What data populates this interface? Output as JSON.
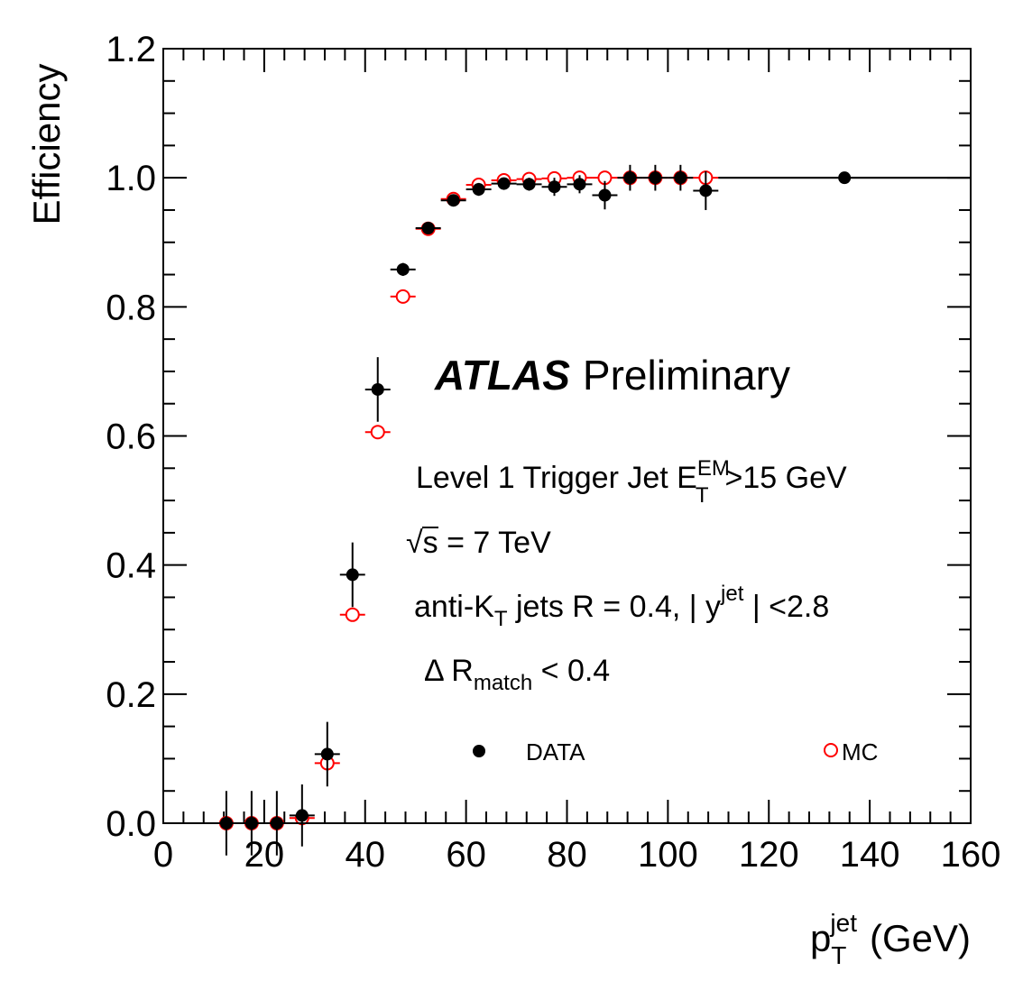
{
  "chart_data": {
    "type": "scatter",
    "xlabel": "p",
    "xlabel_sup": "jet",
    "xlabel_sub": "T",
    "xlabel_unit": "(GeV)",
    "ylabel": "Efficiency",
    "xlim": [
      0,
      160
    ],
    "ylim": [
      0,
      1.2
    ],
    "x_ticks": [
      "0",
      "20",
      "40",
      "60",
      "80",
      "100",
      "120",
      "140",
      "160"
    ],
    "y_ticks": [
      "0.0",
      "0.2",
      "0.4",
      "0.6",
      "0.8",
      "1.0",
      "1.2"
    ],
    "x_tick_values": [
      0,
      20,
      40,
      60,
      80,
      100,
      120,
      140,
      160
    ],
    "y_tick_values": [
      0,
      0.2,
      0.4,
      0.6,
      0.8,
      1.0,
      1.2
    ],
    "series": [
      {
        "name": "DATA",
        "color": "#000000",
        "marker": "filled-circle",
        "points": [
          {
            "x": 12.5,
            "y": 0.0,
            "xerr": 2.5,
            "yerr": 0.05
          },
          {
            "x": 17.5,
            "y": 0.0,
            "xerr": 2.5,
            "yerr": 0.05
          },
          {
            "x": 22.5,
            "y": 0.0,
            "xerr": 2.5,
            "yerr": 0.05
          },
          {
            "x": 27.5,
            "y": 0.012,
            "xerr": 2.5,
            "yerr": 0.048
          },
          {
            "x": 32.5,
            "y": 0.107,
            "xerr": 2.5,
            "yerr": 0.05
          },
          {
            "x": 37.5,
            "y": 0.385,
            "xerr": 2.5,
            "yerr": 0.05
          },
          {
            "x": 42.5,
            "y": 0.672,
            "xerr": 2.5,
            "yerr": 0.05
          },
          {
            "x": 47.5,
            "y": 0.858,
            "xerr": 2.5,
            "yerr": 0.01
          },
          {
            "x": 52.5,
            "y": 0.922,
            "xerr": 2.5,
            "yerr": 0.008
          },
          {
            "x": 57.5,
            "y": 0.965,
            "xerr": 2.5,
            "yerr": 0.008
          },
          {
            "x": 62.5,
            "y": 0.982,
            "xerr": 2.5,
            "yerr": 0.01
          },
          {
            "x": 67.5,
            "y": 0.991,
            "xerr": 2.5,
            "yerr": 0.008
          },
          {
            "x": 72.5,
            "y": 0.99,
            "xerr": 2.5,
            "yerr": 0.01
          },
          {
            "x": 77.5,
            "y": 0.986,
            "xerr": 2.5,
            "yerr": 0.014
          },
          {
            "x": 82.5,
            "y": 0.99,
            "xerr": 2.5,
            "yerr": 0.014
          },
          {
            "x": 87.5,
            "y": 0.973,
            "xerr": 2.5,
            "yerr": 0.022
          },
          {
            "x": 92.5,
            "y": 1.0,
            "xerr": 2.5,
            "yerr": 0.02
          },
          {
            "x": 97.5,
            "y": 1.0,
            "xerr": 2.5,
            "yerr": 0.02
          },
          {
            "x": 102.5,
            "y": 1.0,
            "xerr": 2.5,
            "yerr": 0.02
          },
          {
            "x": 107.5,
            "y": 0.98,
            "xerr": 2.5,
            "yerr": 0.03
          },
          {
            "x": 135,
            "y": 1.0,
            "xerr": 25,
            "yerr": 0.0
          }
        ]
      },
      {
        "name": "MC",
        "color": "#ff0000",
        "marker": "open-circle",
        "points": [
          {
            "x": 12.5,
            "y": 0.0,
            "xerr": 2.5,
            "yerr": 0.0
          },
          {
            "x": 17.5,
            "y": 0.0,
            "xerr": 2.5,
            "yerr": 0.0
          },
          {
            "x": 22.5,
            "y": 0.0,
            "xerr": 2.5,
            "yerr": 0.0
          },
          {
            "x": 27.5,
            "y": 0.008,
            "xerr": 2.5,
            "yerr": 0.0
          },
          {
            "x": 32.5,
            "y": 0.093,
            "xerr": 2.5,
            "yerr": 0.0
          },
          {
            "x": 37.5,
            "y": 0.323,
            "xerr": 2.5,
            "yerr": 0.0
          },
          {
            "x": 42.5,
            "y": 0.606,
            "xerr": 2.5,
            "yerr": 0.0
          },
          {
            "x": 47.5,
            "y": 0.816,
            "xerr": 2.5,
            "yerr": 0.0
          },
          {
            "x": 52.5,
            "y": 0.921,
            "xerr": 2.5,
            "yerr": 0.0
          },
          {
            "x": 57.5,
            "y": 0.967,
            "xerr": 2.5,
            "yerr": 0.0
          },
          {
            "x": 62.5,
            "y": 0.989,
            "xerr": 2.5,
            "yerr": 0.0
          },
          {
            "x": 67.5,
            "y": 0.996,
            "xerr": 2.5,
            "yerr": 0.0
          },
          {
            "x": 72.5,
            "y": 0.998,
            "xerr": 2.5,
            "yerr": 0.0
          },
          {
            "x": 77.5,
            "y": 0.999,
            "xerr": 2.5,
            "yerr": 0.0
          },
          {
            "x": 82.5,
            "y": 1.0,
            "xerr": 2.5,
            "yerr": 0.0
          },
          {
            "x": 87.5,
            "y": 1.0,
            "xerr": 2.5,
            "yerr": 0.0
          },
          {
            "x": 92.5,
            "y": 1.0,
            "xerr": 2.5,
            "yerr": 0.0
          },
          {
            "x": 97.5,
            "y": 1.0,
            "xerr": 2.5,
            "yerr": 0.0
          },
          {
            "x": 102.5,
            "y": 1.0,
            "xerr": 2.5,
            "yerr": 0.0
          },
          {
            "x": 107.5,
            "y": 1.0,
            "xerr": 2.5,
            "yerr": 0.0
          }
        ]
      }
    ],
    "reference_line": {
      "y": 1.0,
      "x_from": 110,
      "x_to": 160
    },
    "annotations": {
      "atlas": "ATLAS",
      "preliminary": "Preliminary",
      "trigger_pre": "Level 1 Trigger Jet E",
      "trigger_sup": "EM",
      "trigger_sub": "T",
      "trigger_post": ">15 GeV",
      "sqrt_s_sym": "√",
      "sqrt_s_var": "s",
      "sqrt_s_rest": " = 7 TeV",
      "antikt_pre": "anti-K",
      "antikt_sub": "T",
      "antikt_mid": " jets R = 0.4, | y",
      "antikt_sup": "jet",
      "antikt_post": " | <2.8",
      "dr_pre": "Δ R",
      "dr_sub": "match",
      "dr_post": " < 0.4"
    },
    "legend": {
      "placement": "lower-middle",
      "entries": [
        "DATA",
        "MC"
      ]
    },
    "grid": false
  }
}
